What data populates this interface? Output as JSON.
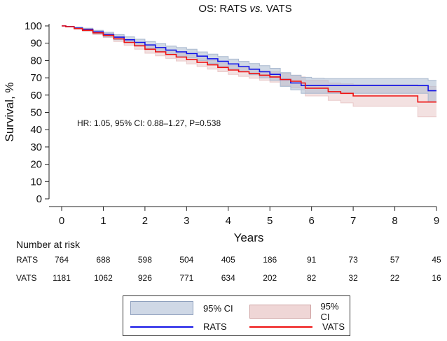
{
  "chart_data": {
    "type": "line",
    "title_parts": [
      {
        "text": "OS: RATS ",
        "italic": false
      },
      {
        "text": "vs.",
        "italic": true
      },
      {
        "text": " VATS",
        "italic": false
      }
    ],
    "xlabel": "Years",
    "ylabel": "Survival, %",
    "xlim": [
      0,
      9
    ],
    "ylim": [
      0,
      100
    ],
    "x_ticks": [
      0,
      1,
      2,
      3,
      4,
      5,
      6,
      7,
      8,
      9
    ],
    "y_ticks": [
      0,
      10,
      20,
      30,
      40,
      50,
      60,
      70,
      80,
      90,
      100
    ],
    "annotation": "HR: 1.05, 95% CI: 0.88–1.27, P=0.538",
    "series": [
      {
        "name": "RATS",
        "color": "#1414e6",
        "ci_color": "#a9b9cf",
        "x": [
          0,
          0.1,
          0.3,
          0.5,
          0.75,
          1,
          1.25,
          1.5,
          1.75,
          2,
          2.25,
          2.5,
          2.75,
          3,
          3.25,
          3.5,
          3.75,
          4,
          4.25,
          4.5,
          4.75,
          5,
          5.25,
          5.5,
          5.75,
          6,
          6.3,
          7,
          8,
          8.5,
          8.8,
          9
        ],
        "y": [
          100,
          99.6,
          98.8,
          98,
          96.5,
          95,
          93.5,
          92,
          90.5,
          89,
          87.5,
          86,
          85,
          84,
          82.5,
          81,
          79.5,
          78,
          76.5,
          75,
          73.5,
          72,
          69,
          67,
          65.5,
          65.5,
          65.5,
          65.5,
          65.5,
          65.5,
          62.5,
          62.5
        ],
        "upper": [
          100,
          99.8,
          99.3,
          98.7,
          97.5,
          96.3,
          95,
          93.7,
          92.3,
          91,
          89.7,
          88.3,
          87.5,
          86.5,
          85,
          83.7,
          82.3,
          80.8,
          79.5,
          78.2,
          77,
          75.5,
          73,
          71.5,
          70.3,
          69.8,
          69.5,
          69.5,
          69.5,
          69.5,
          68.5,
          68.5
        ],
        "lower": [
          100,
          99.4,
          98.3,
          97.3,
          95.5,
          93.7,
          92,
          90.3,
          88.7,
          87,
          85.3,
          83.7,
          82.5,
          81.5,
          80,
          78.3,
          76.7,
          75.2,
          73.5,
          71.8,
          70,
          68.5,
          65,
          63,
          61,
          61,
          61,
          61,
          61,
          61,
          56,
          56
        ]
      },
      {
        "name": "VATS",
        "color": "#ee1111",
        "ci_color": "#e9c9c9",
        "x": [
          0,
          0.1,
          0.3,
          0.5,
          0.75,
          1,
          1.25,
          1.5,
          1.75,
          2,
          2.25,
          2.5,
          2.75,
          3,
          3.25,
          3.5,
          3.75,
          4,
          4.25,
          4.5,
          4.75,
          5,
          5.25,
          5.5,
          5.75,
          5.85,
          6,
          6.4,
          6.7,
          7,
          7.5,
          8,
          8.5,
          8.55,
          9
        ],
        "y": [
          100,
          99.5,
          98.5,
          97.5,
          96,
          94.5,
          92.5,
          90.5,
          88.5,
          86.5,
          85,
          83.5,
          82,
          80.5,
          79,
          77.5,
          76,
          74.5,
          73.5,
          72.5,
          71.5,
          70.5,
          69,
          68,
          67,
          64,
          64,
          62,
          61,
          59.5,
          59.5,
          59.5,
          59.5,
          56,
          56
        ],
        "upper": [
          100,
          99.7,
          99,
          98.2,
          97,
          95.7,
          94,
          92.2,
          90.5,
          88.8,
          87.3,
          85.8,
          84.3,
          83,
          81.5,
          80,
          78.5,
          77,
          76,
          75,
          74,
          73.5,
          72.5,
          71.5,
          70.5,
          68.5,
          68.5,
          67,
          66.5,
          66,
          66,
          66,
          66,
          65,
          65
        ],
        "lower": [
          100,
          99.3,
          98,
          96.8,
          95,
          93.3,
          91,
          88.8,
          86.5,
          84.2,
          82.7,
          81.2,
          79.7,
          78,
          76.5,
          75,
          73.5,
          72,
          70.8,
          69.7,
          68.6,
          67.5,
          65.5,
          64.2,
          63,
          59.5,
          59.5,
          57,
          55.5,
          53.5,
          53.5,
          53.5,
          53.5,
          47.5,
          47.5
        ]
      }
    ],
    "risk_table": {
      "title": "Number at risk",
      "times": [
        0,
        1,
        2,
        3,
        4,
        5,
        6,
        7,
        8,
        9
      ],
      "rows": [
        {
          "label": "RATS",
          "values": [
            764,
            688,
            598,
            504,
            405,
            186,
            91,
            73,
            57,
            45
          ]
        },
        {
          "label": "VATS",
          "values": [
            1181,
            1062,
            926,
            771,
            634,
            202,
            82,
            32,
            22,
            16
          ]
        }
      ]
    },
    "legend": {
      "position": "bottom-center",
      "ci_label_rats": "95% CI",
      "ci_label_vats": "95% CI",
      "line_label_rats": "RATS",
      "line_label_vats": "VATS"
    }
  }
}
